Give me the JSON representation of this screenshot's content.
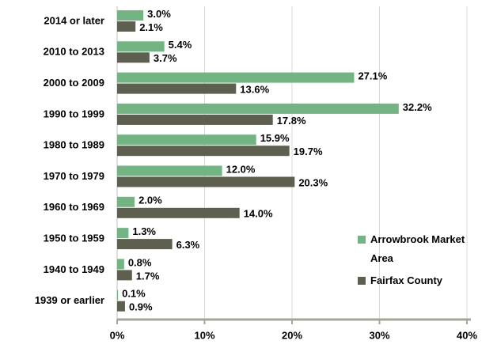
{
  "chart_data": {
    "type": "hbar",
    "categories": [
      "2014 or later",
      "2010 to 2013",
      "2000 to 2009",
      "1990 to 1999",
      "1980 to 1989",
      "1970 to 1979",
      "1960 to 1969",
      "1950 to 1959",
      "1940 to 1949",
      "1939 or earlier"
    ],
    "series": [
      {
        "name": "Arrowbrook Market Area",
        "color": "#72b583",
        "values": [
          3.0,
          5.4,
          27.1,
          32.2,
          15.9,
          12.0,
          2.0,
          1.3,
          0.8,
          0.1
        ],
        "value_labels": [
          "3.0%",
          "5.4%",
          "27.1%",
          "32.2%",
          "15.9%",
          "12.0%",
          "2.0%",
          "1.3%",
          "0.8%",
          "0.1%"
        ]
      },
      {
        "name": "Fairfax County",
        "color": "#5e5f4f",
        "values": [
          2.1,
          3.7,
          13.6,
          17.8,
          19.7,
          20.3,
          14.0,
          6.3,
          1.7,
          0.9
        ],
        "value_labels": [
          "2.1%",
          "3.7%",
          "13.6%",
          "17.8%",
          "19.7%",
          "20.3%",
          "14.0%",
          "6.3%",
          "1.7%",
          "0.9%"
        ]
      }
    ],
    "xlim": [
      0,
      40
    ],
    "xticks": [
      {
        "value": 0,
        "label": "0%"
      },
      {
        "value": 10,
        "label": "10%"
      },
      {
        "value": 20,
        "label": "20%"
      },
      {
        "value": 30,
        "label": "30%"
      },
      {
        "value": 40,
        "label": "40%"
      }
    ],
    "grid": true,
    "legend": "lower right"
  }
}
